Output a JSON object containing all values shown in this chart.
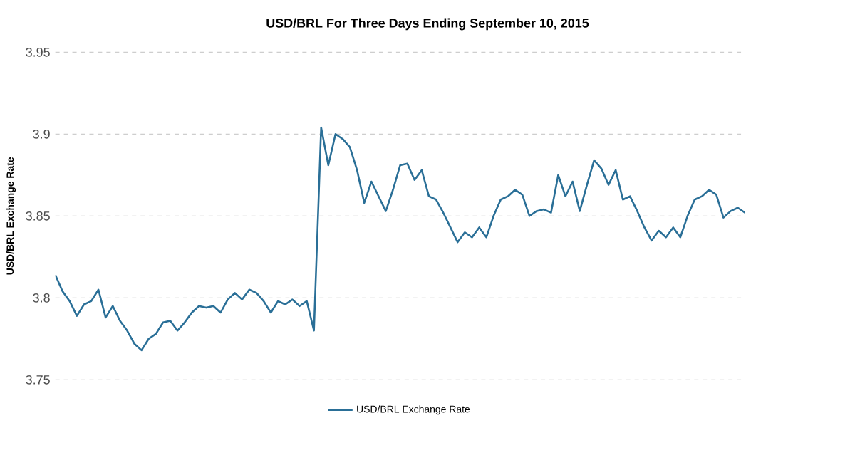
{
  "chart_data": {
    "type": "line",
    "title": "USD/BRL For Three Days Ending September 10, 2015",
    "ylabel": "USD/BRL Exchange Rate",
    "categories": [
      null,
      null,
      null,
      null,
      null,
      null,
      null,
      null,
      null,
      null,
      null,
      null,
      null,
      null,
      null,
      null,
      null,
      null,
      null,
      null,
      null,
      null,
      null,
      null,
      null,
      null,
      null,
      null,
      null,
      null,
      null,
      null,
      null,
      null,
      null,
      null,
      null,
      null,
      null,
      null,
      null,
      null,
      null,
      null,
      null,
      null,
      null,
      null,
      null,
      null,
      null,
      null,
      null,
      null,
      null,
      null,
      null,
      null,
      null,
      null,
      null,
      null,
      null,
      null,
      null,
      null,
      null,
      null,
      null,
      null,
      null,
      null,
      null,
      null,
      null,
      null,
      null,
      null,
      null,
      null,
      null,
      null,
      null,
      null,
      null,
      null,
      null,
      null,
      null,
      null,
      null,
      null,
      null,
      null,
      null,
      null,
      null
    ],
    "series": [
      {
        "name": "USD/BRL Exchange Rate",
        "color": "#2a6f97",
        "values": [
          3.814,
          3.804,
          3.798,
          3.789,
          3.796,
          3.798,
          3.805,
          3.788,
          3.795,
          3.786,
          3.78,
          3.772,
          3.768,
          3.775,
          3.778,
          3.785,
          3.786,
          3.78,
          3.785,
          3.791,
          3.795,
          3.794,
          3.795,
          3.791,
          3.799,
          3.803,
          3.799,
          3.805,
          3.803,
          3.798,
          3.791,
          3.798,
          3.796,
          3.799,
          3.795,
          3.798,
          3.78,
          3.904,
          3.881,
          3.9,
          3.897,
          3.892,
          3.878,
          3.858,
          3.871,
          3.862,
          3.853,
          3.866,
          3.881,
          3.882,
          3.872,
          3.878,
          3.862,
          3.86,
          3.852,
          3.843,
          3.834,
          3.84,
          3.837,
          3.843,
          3.837,
          3.85,
          3.86,
          3.862,
          3.866,
          3.863,
          3.85,
          3.853,
          3.854,
          3.852,
          3.875,
          3.862,
          3.871,
          3.853,
          3.869,
          3.884,
          3.879,
          3.869,
          3.878,
          3.86,
          3.862,
          3.853,
          3.843,
          3.835,
          3.841,
          3.837,
          3.843,
          3.837,
          3.85,
          3.86,
          3.862,
          3.866,
          3.863,
          3.849,
          3.853,
          3.855,
          3.852
        ]
      }
    ],
    "ylim": [
      3.75,
      3.95
    ],
    "yticks": [
      3.75,
      3.8,
      3.85,
      3.9,
      3.95
    ],
    "grid": "y",
    "legend": "bottom",
    "marker": "none",
    "line_style": "solid"
  }
}
